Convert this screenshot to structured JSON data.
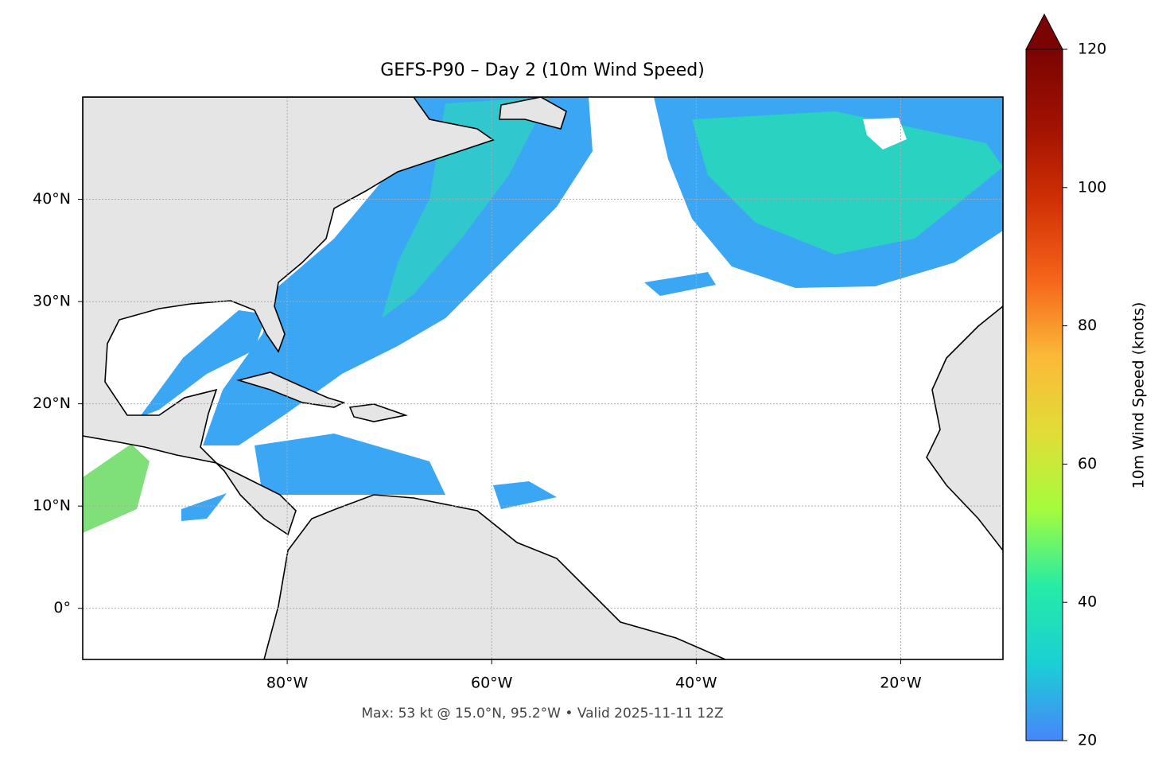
{
  "map": {
    "title": "GEFS-P90 – Day 2 (10m Wind Speed)",
    "footnote": "Max: 53 kt @ 15.0°N, 95.2°W • Valid 2025-11-11 12Z",
    "xlim": [
      -100,
      -10
    ],
    "ylim": [
      -5,
      50
    ],
    "xticks": [
      {
        "value": -80,
        "label": "80°W"
      },
      {
        "value": -60,
        "label": "60°W"
      },
      {
        "value": -40,
        "label": "40°W"
      },
      {
        "value": -20,
        "label": "20°W"
      }
    ],
    "yticks": [
      {
        "value": 0,
        "label": "0°"
      },
      {
        "value": 10,
        "label": "10°N"
      },
      {
        "value": 20,
        "label": "20°N"
      },
      {
        "value": 30,
        "label": "30°N"
      },
      {
        "value": 40,
        "label": "40°N"
      }
    ],
    "grid": true,
    "colorbar": {
      "label": "10m Wind Speed (knots)",
      "lim": [
        20,
        120
      ],
      "ticks": [
        20,
        40,
        60,
        80,
        100,
        120
      ],
      "colormap": [
        "#4686fb",
        "#1bcfd4",
        "#24eca6",
        "#a4fc3c",
        "#e1dd37",
        "#fbb938",
        "#f5651a",
        "#d23105",
        "#a11201",
        "#7a0403"
      ]
    }
  }
}
